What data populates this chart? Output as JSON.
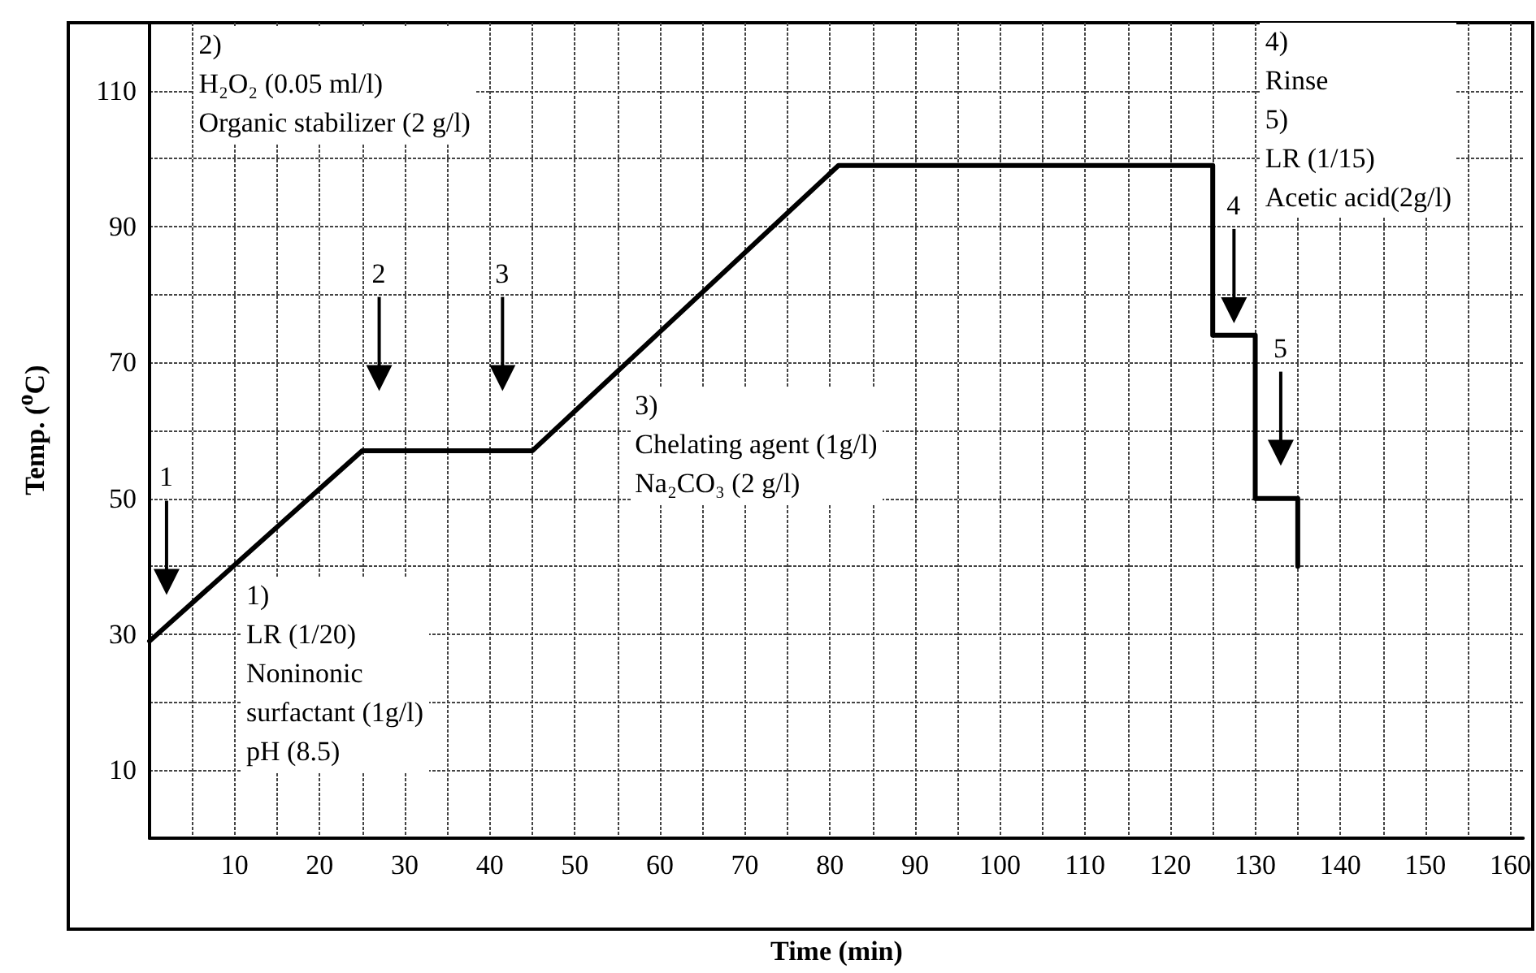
{
  "chart_data": {
    "type": "line",
    "xlabel": "Time (min)",
    "ylabel": "Temp. ($^{o}$C)",
    "series": [
      {
        "color": "#000000",
        "x": [
          0,
          25,
          45,
          81,
          125,
          125,
          130,
          130,
          135,
          135
        ],
        "values": [
          29,
          57,
          57,
          99,
          99,
          74,
          74,
          50,
          50,
          40
        ]
      }
    ],
    "xlim": [
      0,
      161.5
    ],
    "ylim": [
      0,
      120
    ],
    "xticks": [
      {
        "value": 5,
        "label": null
      },
      10,
      {
        "value": 15,
        "label": null
      },
      20,
      {
        "value": 25,
        "label": null
      },
      30,
      {
        "value": 35,
        "label": null
      },
      40,
      {
        "value": 45,
        "label": null
      },
      50,
      {
        "value": 55,
        "label": null
      },
      60,
      {
        "value": 65,
        "label": null
      },
      70,
      {
        "value": 75,
        "label": null
      },
      80,
      {
        "value": 85,
        "label": null
      },
      90,
      {
        "value": 95,
        "label": null
      },
      100,
      {
        "value": 105,
        "label": null
      },
      110,
      {
        "value": 115,
        "label": null
      },
      120,
      {
        "value": 125,
        "label": null
      },
      130,
      {
        "value": 135,
        "label": null
      },
      140,
      {
        "value": 145,
        "label": null
      },
      150,
      {
        "value": 155,
        "label": null
      },
      160
    ],
    "yticks": [
      10,
      {
        "value": 20,
        "label": null
      },
      30,
      {
        "value": 40,
        "label": null
      },
      50,
      {
        "value": 60,
        "label": null
      },
      70,
      {
        "value": 80,
        "label": null
      },
      90,
      {
        "value": 100,
        "label": null
      },
      110
    ],
    "grid": true,
    "marker": "none",
    "line_style": "solid",
    "annotations": [
      "2)\nH₂O₂ (0.05 ml/l)\nOrganic stabilizer (2 g/l)",
      "3)\nChelating agent (1g/l)\nNa₂CO₃ (2 g/l)",
      "1)\nLR (1/20)\nNoninonic\nsurfactant (1g/l)\npH (8.5)",
      "4)\nRinse\n5)\nLR (1/15)\nAcetic acid(2g/l)",
      "1",
      "2",
      "3",
      "4",
      "5"
    ]
  }
}
